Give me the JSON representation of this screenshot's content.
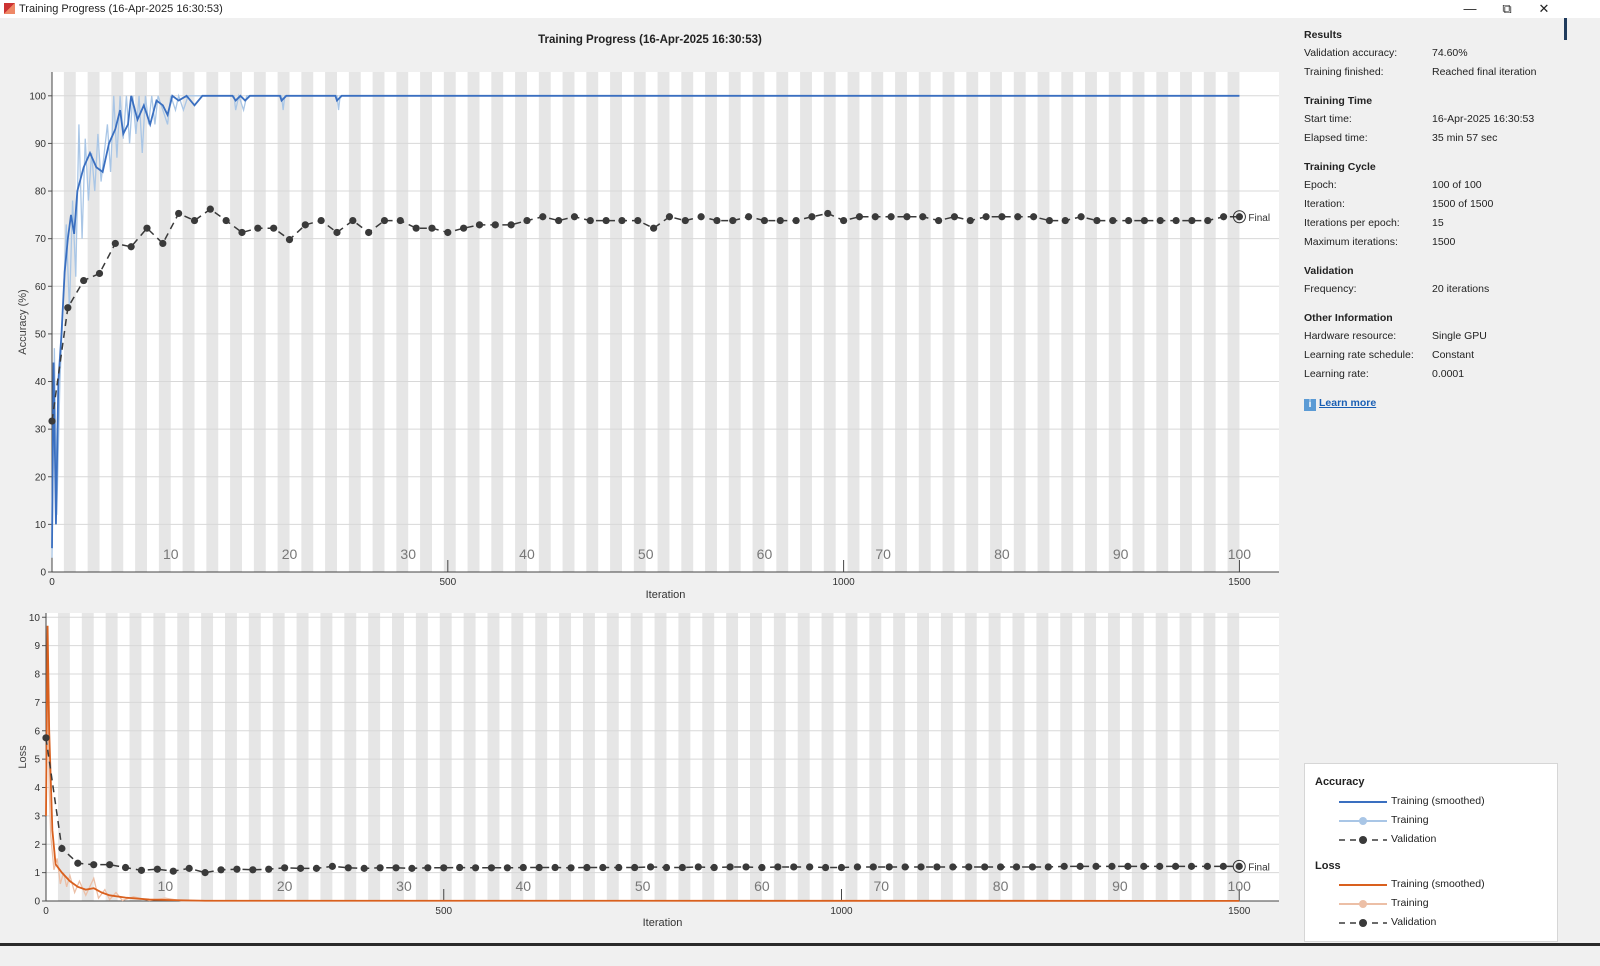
{
  "window": {
    "title": "Training Progress (16-Apr-2025 16:30:53)",
    "minimize_icon": "minimize-icon",
    "restore_icon": "restore-icon",
    "close_icon": "close-icon"
  },
  "plot_title": "Training Progress (16-Apr-2025 16:30:53)",
  "colors": {
    "acc_smoothed": "#3a6fc0",
    "acc_training": "#a9c6e6",
    "loss_smoothed": "#d9601e",
    "loss_training": "#ecbfa6",
    "validation": "#3a3a3a",
    "epoch_band": "#e6e6e6"
  },
  "chart_data": [
    {
      "type": "line",
      "title": "",
      "xlabel": "Iteration",
      "ylabel": "Accuracy (%)",
      "xlim": [
        0,
        1550
      ],
      "ylim": [
        0,
        105
      ],
      "xticks": [
        0,
        500,
        1000,
        1500
      ],
      "yticks": [
        0,
        10,
        20,
        30,
        40,
        50,
        60,
        70,
        80,
        90,
        100
      ],
      "epoch_labels": [
        10,
        20,
        30,
        40,
        50,
        60,
        70,
        80,
        90,
        100
      ],
      "iterations_per_epoch": 15,
      "grid": true,
      "final_label": "Final",
      "series": [
        {
          "name": "Training (smoothed)",
          "points": [
            [
              0,
              5
            ],
            [
              2,
              44
            ],
            [
              5,
              10
            ],
            [
              8,
              40
            ],
            [
              12,
              50
            ],
            [
              16,
              63
            ],
            [
              20,
              70
            ],
            [
              24,
              75
            ],
            [
              28,
              71
            ],
            [
              32,
              80
            ],
            [
              40,
              85
            ],
            [
              48,
              88
            ],
            [
              56,
              85
            ],
            [
              64,
              84
            ],
            [
              72,
              90
            ],
            [
              80,
              93
            ],
            [
              86,
              97
            ],
            [
              90,
              92
            ],
            [
              96,
              94
            ],
            [
              100,
              100
            ],
            [
              108,
              95
            ],
            [
              116,
              98
            ],
            [
              124,
              94
            ],
            [
              132,
              99
            ],
            [
              140,
              98
            ],
            [
              146,
              96
            ],
            [
              152,
              100
            ],
            [
              160,
              99
            ],
            [
              170,
              100
            ],
            [
              180,
              98
            ],
            [
              190,
              100
            ],
            [
              228,
              100
            ],
            [
              232,
              99
            ],
            [
              238,
              100
            ],
            [
              244,
              99
            ],
            [
              250,
              100
            ],
            [
              288,
              100
            ],
            [
              290,
              99
            ],
            [
              296,
              100
            ],
            [
              358,
              100
            ],
            [
              360,
              99
            ],
            [
              366,
              100
            ],
            [
              1500,
              100
            ]
          ]
        },
        {
          "name": "Training",
          "points": [
            [
              0,
              3
            ],
            [
              3,
              47
            ],
            [
              6,
              12
            ],
            [
              10,
              40
            ],
            [
              14,
              56
            ],
            [
              18,
              73
            ],
            [
              22,
              55
            ],
            [
              26,
              78
            ],
            [
              30,
              62
            ],
            [
              34,
              94
            ],
            [
              38,
              70
            ],
            [
              42,
              91
            ],
            [
              46,
              78
            ],
            [
              50,
              88
            ],
            [
              54,
              80
            ],
            [
              58,
              92
            ],
            [
              62,
              82
            ],
            [
              66,
              88
            ],
            [
              70,
              94
            ],
            [
              74,
              84
            ],
            [
              78,
              100
            ],
            [
              82,
              87
            ],
            [
              86,
              100
            ],
            [
              90,
              91
            ],
            [
              94,
              100
            ],
            [
              98,
              90
            ],
            [
              102,
              100
            ],
            [
              106,
              92
            ],
            [
              110,
              100
            ],
            [
              114,
              88
            ],
            [
              118,
              100
            ],
            [
              122,
              94
            ],
            [
              126,
              100
            ],
            [
              130,
              94
            ],
            [
              134,
              100
            ],
            [
              140,
              97
            ],
            [
              146,
              94
            ],
            [
              150,
              100
            ],
            [
              156,
              97
            ],
            [
              160,
              100
            ],
            [
              166,
              97
            ],
            [
              172,
              100
            ],
            [
              230,
              100
            ],
            [
              232,
              97
            ],
            [
              236,
              100
            ],
            [
              242,
              97
            ],
            [
              246,
              100
            ],
            [
              290,
              100
            ],
            [
              292,
              97
            ],
            [
              294,
              100
            ],
            [
              360,
              100
            ],
            [
              362,
              97
            ],
            [
              364,
              100
            ],
            [
              1500,
              100
            ]
          ]
        },
        {
          "name": "Validation",
          "values": [
            31.7,
            55.5,
            61.2,
            62.7,
            69.0,
            68.3,
            72.2,
            69.0,
            75.3,
            73.8,
            76.2,
            73.8,
            71.3,
            72.2,
            72.2,
            69.8,
            72.9,
            73.8,
            71.3,
            73.8,
            71.3,
            73.8,
            73.8,
            72.2,
            72.2,
            71.3,
            72.2,
            72.9,
            72.9,
            72.9,
            73.8,
            74.6,
            73.8,
            74.6,
            73.8,
            73.8,
            73.8,
            73.8,
            72.2,
            74.6,
            73.8,
            74.6,
            73.8,
            73.8,
            74.6,
            73.8,
            73.8,
            73.8,
            74.6,
            75.3,
            73.8,
            74.6,
            74.6,
            74.6,
            74.6,
            74.6,
            73.8,
            74.6,
            73.8,
            74.6,
            74.6,
            74.6,
            74.6,
            73.8,
            73.8,
            74.6,
            73.8,
            73.8,
            73.8,
            73.8,
            73.8,
            73.8,
            73.8,
            73.8,
            74.6,
            74.6
          ]
        }
      ]
    },
    {
      "type": "line",
      "title": "",
      "xlabel": "Iteration",
      "ylabel": "Loss",
      "xlim": [
        0,
        1550
      ],
      "ylim": [
        0,
        10.15
      ],
      "xticks": [
        0,
        500,
        1000,
        1500
      ],
      "yticks": [
        0,
        1,
        2,
        3,
        4,
        5,
        6,
        7,
        8,
        9,
        10
      ],
      "epoch_labels": [
        10,
        20,
        30,
        40,
        50,
        60,
        70,
        80,
        90,
        100
      ],
      "iterations_per_epoch": 15,
      "grid": true,
      "final_label": "Final",
      "series": [
        {
          "name": "Training (smoothed)",
          "points": [
            [
              0,
              3
            ],
            [
              2,
              9.7
            ],
            [
              4,
              6
            ],
            [
              8,
              2.5
            ],
            [
              12,
              1.3
            ],
            [
              20,
              1.0
            ],
            [
              30,
              0.7
            ],
            [
              40,
              0.5
            ],
            [
              50,
              0.4
            ],
            [
              60,
              0.45
            ],
            [
              70,
              0.3
            ],
            [
              80,
              0.2
            ],
            [
              100,
              0.12
            ],
            [
              130,
              0.05
            ],
            [
              160,
              0.03
            ],
            [
              200,
              0.01
            ],
            [
              1500,
              0.005
            ]
          ]
        },
        {
          "name": "Training",
          "points": [
            [
              0,
              3
            ],
            [
              2,
              9.6
            ],
            [
              4,
              4
            ],
            [
              6,
              2.3
            ],
            [
              8,
              1.7
            ],
            [
              10,
              1.1
            ],
            [
              14,
              1.5
            ],
            [
              18,
              0.6
            ],
            [
              22,
              1.0
            ],
            [
              26,
              0.5
            ],
            [
              30,
              0.9
            ],
            [
              36,
              0.3
            ],
            [
              42,
              0.7
            ],
            [
              50,
              0.2
            ],
            [
              60,
              0.8
            ],
            [
              66,
              0.1
            ],
            [
              74,
              0.4
            ],
            [
              80,
              0.05
            ],
            [
              88,
              0.3
            ],
            [
              96,
              0.02
            ],
            [
              110,
              0.15
            ],
            [
              130,
              0.02
            ],
            [
              150,
              0.1
            ],
            [
              170,
              0.01
            ],
            [
              1500,
              0
            ]
          ]
        },
        {
          "name": "Validation",
          "values": [
            5.75,
            1.85,
            1.33,
            1.28,
            1.28,
            1.18,
            1.08,
            1.12,
            1.05,
            1.15,
            1.0,
            1.1,
            1.12,
            1.1,
            1.12,
            1.17,
            1.15,
            1.15,
            1.22,
            1.17,
            1.15,
            1.17,
            1.17,
            1.15,
            1.17,
            1.17,
            1.18,
            1.17,
            1.17,
            1.17,
            1.18,
            1.18,
            1.18,
            1.17,
            1.18,
            1.18,
            1.18,
            1.18,
            1.2,
            1.18,
            1.18,
            1.2,
            1.18,
            1.2,
            1.2,
            1.18,
            1.2,
            1.2,
            1.2,
            1.18,
            1.18,
            1.2,
            1.2,
            1.2,
            1.2,
            1.2,
            1.2,
            1.2,
            1.2,
            1.2,
            1.2,
            1.2,
            1.2,
            1.2,
            1.22,
            1.22,
            1.22,
            1.22,
            1.22,
            1.22,
            1.22,
            1.22,
            1.22,
            1.22,
            1.22,
            1.22
          ]
        }
      ]
    }
  ],
  "info": {
    "results": {
      "heading": "Results",
      "rows": [
        {
          "label": "Validation accuracy:",
          "value": "74.60%"
        },
        {
          "label": "Training finished:",
          "value": "Reached final iteration"
        }
      ]
    },
    "time": {
      "heading": "Training Time",
      "rows": [
        {
          "label": "Start time:",
          "value": "16-Apr-2025 16:30:53"
        },
        {
          "label": "Elapsed time:",
          "value": "35 min 57 sec"
        }
      ]
    },
    "cycle": {
      "heading": "Training Cycle",
      "rows": [
        {
          "label": "Epoch:",
          "value": "100 of 100"
        },
        {
          "label": "Iteration:",
          "value": "1500 of 1500"
        },
        {
          "label": "Iterations per epoch:",
          "value": "15"
        },
        {
          "label": "Maximum iterations:",
          "value": "1500"
        }
      ]
    },
    "validation": {
      "heading": "Validation",
      "rows": [
        {
          "label": "Frequency:",
          "value": "20 iterations"
        }
      ]
    },
    "other": {
      "heading": "Other Information",
      "rows": [
        {
          "label": "Hardware resource:",
          "value": "Single GPU"
        },
        {
          "label": "Learning rate schedule:",
          "value": "Constant"
        },
        {
          "label": "Learning rate:",
          "value": "0.0001"
        }
      ]
    },
    "learn_more": "Learn more",
    "info_icon": "i"
  },
  "legend": {
    "accuracy_heading": "Accuracy",
    "loss_heading": "Loss",
    "smoothed": "Training (smoothed)",
    "training": "Training",
    "validation": "Validation"
  }
}
